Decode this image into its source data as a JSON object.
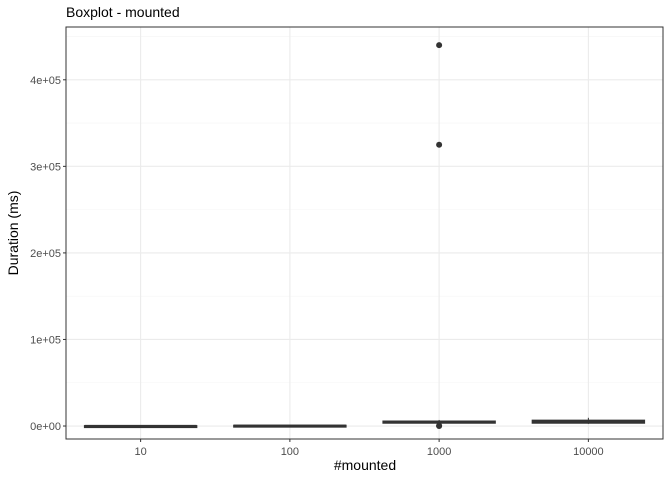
{
  "chart_data": {
    "type": "boxplot",
    "title": "Boxplot - mounted",
    "xlabel": "#mounted",
    "ylabel": "Duration (ms)",
    "categories": [
      "10",
      "100",
      "1000",
      "10000"
    ],
    "ylim": [
      -15000,
      461000
    ],
    "y_ticks": [
      0,
      100000,
      200000,
      300000,
      400000
    ],
    "y_tick_labels": [
      "0e+00",
      "1e+05",
      "2e+05",
      "3e+05",
      "4e+05"
    ],
    "grid": true,
    "boxes": [
      {
        "category": "10",
        "min": 0,
        "q1": 0,
        "median": 0,
        "q3": 200,
        "max": 400,
        "outliers": []
      },
      {
        "category": "100",
        "min": 0,
        "q1": 200,
        "median": 400,
        "q3": 700,
        "max": 1000,
        "outliers": []
      },
      {
        "category": "1000",
        "min": 1500,
        "q1": 3500,
        "median": 4500,
        "q3": 5500,
        "max": 7000,
        "outliers": [
          440000,
          325000,
          0,
          300
        ]
      },
      {
        "category": "10000",
        "min": 2500,
        "q1": 3500,
        "median": 5000,
        "q3": 6500,
        "max": 9500,
        "outliers": []
      }
    ],
    "colors": {
      "box_stroke": "#333333",
      "box_fill": "#ffffff",
      "grid_major": "#ebebeb",
      "grid_minor": "#f5f5f5",
      "panel_border": "#333333",
      "outlier": "#333333"
    }
  }
}
